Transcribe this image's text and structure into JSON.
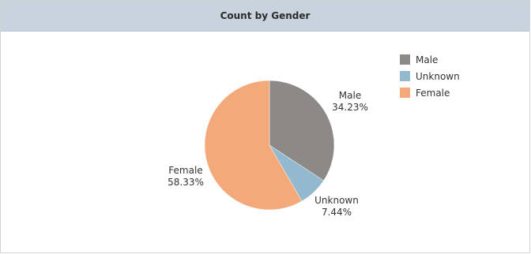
{
  "panel": {
    "title": "Count by Gender"
  },
  "chart_data": {
    "type": "pie",
    "title": "Count by Gender",
    "slices": [
      {
        "label": "Male",
        "percent_label": "34.23%",
        "value": 34.23,
        "color": "#8c8987"
      },
      {
        "label": "Unknown",
        "percent_label": "7.44%",
        "value": 7.44,
        "color": "#93b9ce"
      },
      {
        "label": "Female",
        "percent_label": "58.33%",
        "value": 58.33,
        "color": "#f4a97a"
      }
    ],
    "legend": {
      "position": "top-right",
      "items": [
        {
          "label": "Male",
          "color": "#8c8987"
        },
        {
          "label": "Unknown",
          "color": "#93b9ce"
        },
        {
          "label": "Female",
          "color": "#f4a97a"
        }
      ]
    }
  }
}
